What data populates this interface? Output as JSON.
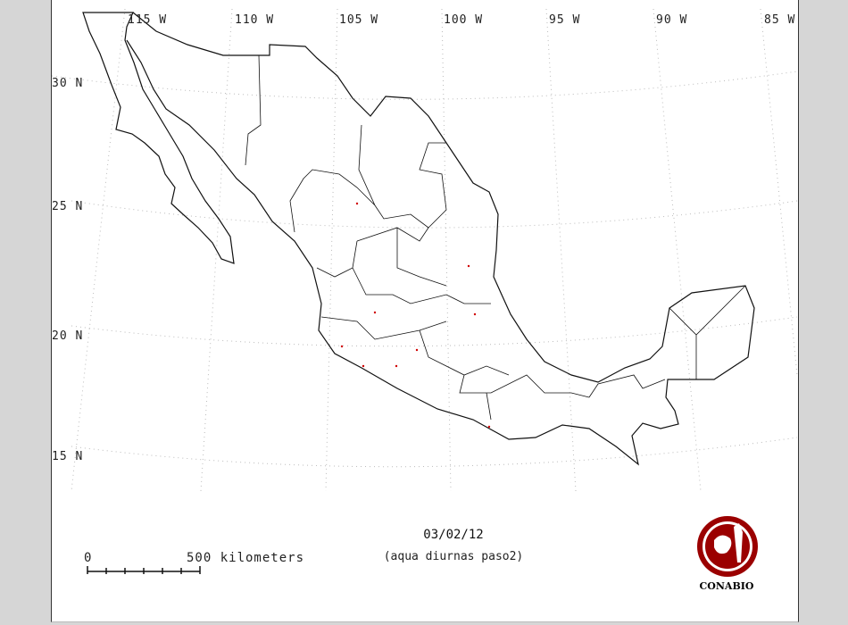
{
  "map": {
    "longitude_labels": [
      "115 W",
      "110 W",
      "105 W",
      "100 W",
      "95 W",
      "90 W",
      "85 W"
    ],
    "latitude_labels": [
      "30 N",
      "25 N",
      "20 N",
      "15 N"
    ],
    "date": "03/02/12",
    "subtitle": "(aqua diurnas paso2)",
    "scale": {
      "zero": "0",
      "distance_label": "500 kilometers"
    },
    "logo_text": "CONABIO",
    "colors": {
      "outline": "#111111",
      "points": "#d00000",
      "logo": "#9b0000",
      "graticule": "#bbbbbb"
    }
  }
}
